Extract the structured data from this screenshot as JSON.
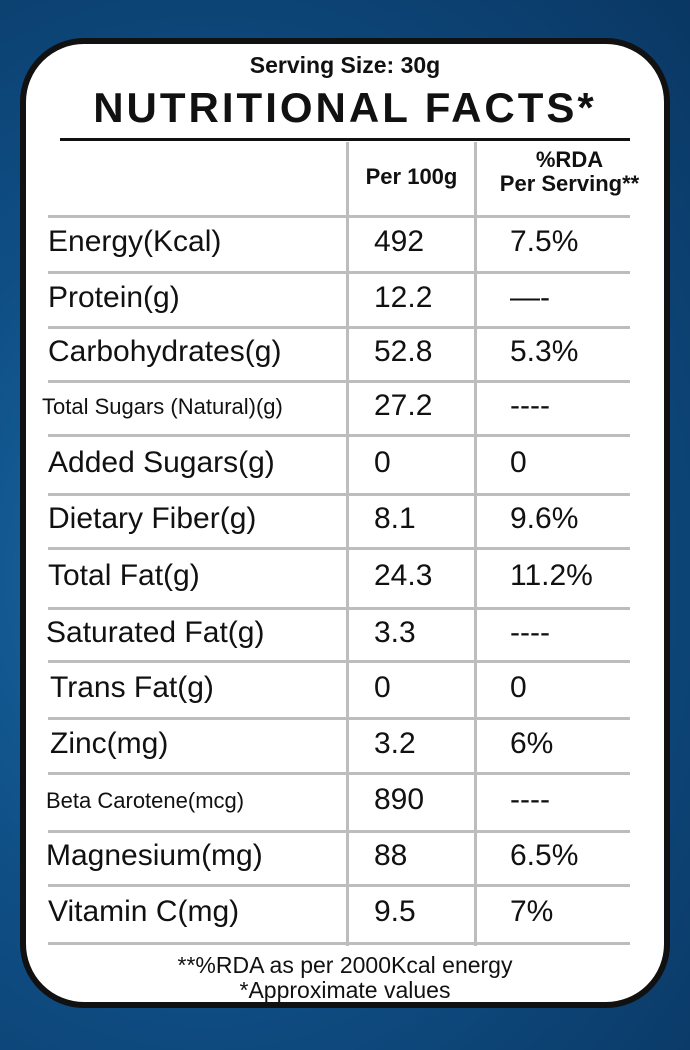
{
  "serving_size": "Serving Size: 30g",
  "title": "NUTRITIONAL FACTS*",
  "headers": {
    "per100": "Per 100g",
    "rda_line1": "%RDA",
    "rda_line2": "Per Serving**"
  },
  "rows": [
    {
      "nutrient": "Energy(Kcal)",
      "per100": "492",
      "rda": "7.5%"
    },
    {
      "nutrient": "Protein(g)",
      "per100": "12.2",
      "rda": "—-"
    },
    {
      "nutrient": "Carbohydrates(g)",
      "per100": "52.8",
      "rda": "5.3%"
    },
    {
      "nutrient": "Total Sugars (Natural)(g)",
      "per100": "27.2",
      "rda": "----"
    },
    {
      "nutrient": "Added Sugars(g)",
      "per100": "0",
      "rda": "0"
    },
    {
      "nutrient": "Dietary Fiber(g)",
      "per100": "8.1",
      "rda": "9.6%"
    },
    {
      "nutrient": "Total Fat(g)",
      "per100": "24.3",
      "rda": "11.2%"
    },
    {
      "nutrient": "Saturated Fat(g)",
      "per100": "3.3",
      "rda": "----"
    },
    {
      "nutrient": "Trans Fat(g)",
      "per100": "0",
      "rda": "0"
    },
    {
      "nutrient": "Zinc(mg)",
      "per100": "3.2",
      "rda": "6%"
    },
    {
      "nutrient": "Beta Carotene(mcg)",
      "per100": "890",
      "rda": "----"
    },
    {
      "nutrient": "Magnesium(mg)",
      "per100": "88",
      "rda": "6.5%"
    },
    {
      "nutrient": "Vitamin C(mg)",
      "per100": "9.5",
      "rda": "7%"
    }
  ],
  "footnotes": {
    "rda_basis": "**%RDA as per 2000Kcal energy",
    "approx": "*Approximate values"
  }
}
